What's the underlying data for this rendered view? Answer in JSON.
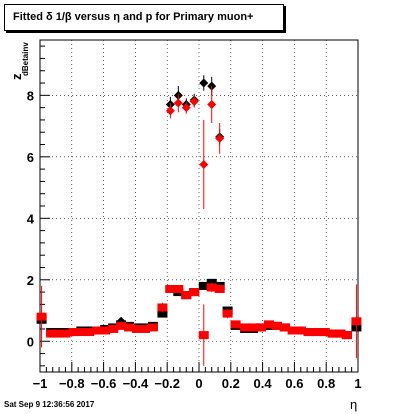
{
  "title": "Fitted δ 1/β versus η and p for Primary muon+",
  "timestamp": "Sat Sep  9 12:36:56 2017",
  "chart_data": {
    "type": "scatter",
    "title": "Fitted δ 1/β versus η and p for Primary muon+",
    "xlabel": "η",
    "ylabel": "z",
    "ylabel_subscript": "dBetainv",
    "xlim": [
      -1,
      1
    ],
    "ylim": [
      -1,
      9.8
    ],
    "grid": true,
    "xticks": [
      -1,
      -0.8,
      -0.6,
      -0.4,
      -0.2,
      0,
      0.2,
      0.4,
      0.6,
      0.8,
      1
    ],
    "xtick_labels": [
      "−1",
      "−0.8",
      "−0.6",
      "−0.4",
      "−0.2",
      "0",
      "0.2",
      "0.4",
      "0.6",
      "0.8",
      "1"
    ],
    "yticks": [
      0,
      2,
      4,
      6,
      8
    ],
    "ytick_labels": [
      "0",
      "2",
      "4",
      "6",
      "8"
    ],
    "series": [
      {
        "color": "#000000",
        "marker": "square",
        "x": [
          -0.99,
          -0.93,
          -0.89,
          -0.84,
          -0.79,
          -0.74,
          -0.69,
          -0.64,
          -0.59,
          -0.54,
          -0.49,
          -0.44,
          -0.39,
          -0.34,
          -0.29,
          -0.23,
          -0.18,
          -0.13,
          -0.08,
          -0.03,
          0.03,
          0.08,
          0.13,
          0.18,
          0.23,
          0.29,
          0.34,
          0.39,
          0.44,
          0.49,
          0.54,
          0.59,
          0.64,
          0.69,
          0.74,
          0.79,
          0.84,
          0.89,
          0.93,
          0.99
        ],
        "y": [
          0.7,
          0.3,
          0.3,
          0.3,
          0.3,
          0.35,
          0.35,
          0.35,
          0.4,
          0.45,
          0.55,
          0.5,
          0.45,
          0.45,
          0.5,
          0.9,
          1.7,
          1.6,
          1.5,
          1.6,
          1.8,
          1.9,
          1.8,
          1.0,
          0.5,
          0.4,
          0.4,
          0.45,
          0.5,
          0.5,
          0.45,
          0.35,
          0.35,
          0.3,
          0.3,
          0.3,
          0.25,
          0.25,
          0.2,
          0.45
        ]
      },
      {
        "color": "#000000",
        "marker": "diamond",
        "x": [
          -0.18,
          -0.13,
          -0.08,
          -0.03,
          0.03,
          0.08,
          0.13,
          -0.49
        ],
        "y": [
          7.7,
          8.0,
          7.7,
          7.85,
          8.4,
          8.3,
          6.65,
          0.65
        ],
        "yerr": [
          0.25,
          0.3,
          0.2,
          0.2,
          0.25,
          0.3,
          0.25,
          0.05
        ]
      },
      {
        "color": "#ff0000",
        "marker": "square",
        "x": [
          -0.99,
          -0.93,
          -0.89,
          -0.84,
          -0.79,
          -0.74,
          -0.69,
          -0.64,
          -0.59,
          -0.54,
          -0.49,
          -0.44,
          -0.39,
          -0.34,
          -0.29,
          -0.23,
          -0.18,
          -0.13,
          -0.08,
          -0.03,
          0.03,
          0.08,
          0.13,
          0.18,
          0.23,
          0.29,
          0.34,
          0.39,
          0.44,
          0.49,
          0.54,
          0.59,
          0.64,
          0.69,
          0.74,
          0.79,
          0.84,
          0.89,
          0.93,
          0.99
        ],
        "y": [
          0.8,
          0.25,
          0.25,
          0.25,
          0.3,
          0.3,
          0.3,
          0.35,
          0.35,
          0.4,
          0.5,
          0.45,
          0.4,
          0.4,
          0.45,
          1.1,
          1.7,
          1.7,
          1.5,
          1.6,
          0.2,
          1.75,
          1.7,
          0.9,
          0.55,
          0.45,
          0.45,
          0.45,
          0.55,
          0.5,
          0.45,
          0.35,
          0.35,
          0.3,
          0.3,
          0.3,
          0.25,
          0.25,
          0.2,
          0.65
        ],
        "yerr": [
          1.0,
          0.1,
          0.1,
          0.1,
          0.1,
          0.1,
          0.1,
          0.1,
          0.1,
          0.1,
          0.1,
          0.1,
          0.1,
          0.1,
          0.1,
          0.15,
          0.1,
          0.1,
          0.1,
          0.1,
          1.0,
          0.15,
          0.1,
          0.15,
          0.1,
          0.1,
          0.1,
          0.1,
          0.1,
          0.1,
          0.1,
          0.1,
          0.1,
          0.1,
          0.1,
          0.1,
          0.1,
          0.1,
          0.1,
          1.2
        ]
      },
      {
        "color": "#ff0000",
        "marker": "diamond",
        "x": [
          -0.18,
          -0.13,
          -0.08,
          -0.03,
          0.03,
          0.08,
          0.13
        ],
        "y": [
          7.5,
          7.75,
          7.6,
          7.8,
          5.75,
          7.7,
          6.6
        ],
        "yerr": [
          0.25,
          0.3,
          0.2,
          0.2,
          1.45,
          0.6,
          0.5
        ]
      }
    ]
  }
}
